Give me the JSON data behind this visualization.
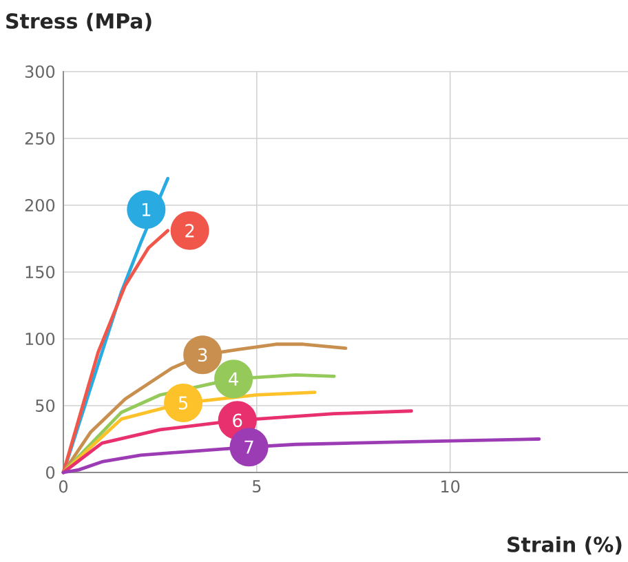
{
  "chart_data": {
    "type": "line",
    "xlabel": "Strain (%)",
    "ylabel": "Stress (MPa)",
    "xlim": [
      0,
      14.6
    ],
    "xticks": [
      0,
      5,
      10
    ],
    "ylim": [
      0,
      300
    ],
    "yticks": [
      0,
      50,
      100,
      150,
      200,
      250,
      300
    ],
    "grid": true,
    "marker": "none",
    "line_style": "solid",
    "series": [
      {
        "name": "1",
        "color": "#29abe2",
        "x": [
          0,
          1.5,
          2.0,
          2.7
        ],
        "values": [
          0,
          135,
          172,
          220
        ]
      },
      {
        "name": "2",
        "color": "#f0574a",
        "x": [
          0,
          0.9,
          1.6,
          2.2,
          2.7
        ],
        "values": [
          0,
          90,
          140,
          168,
          181
        ]
      },
      {
        "name": "3",
        "color": "#c98f4e",
        "x": [
          0,
          0.7,
          1.6,
          2.8,
          3.6,
          4.5,
          5.5,
          6.2,
          7.3
        ],
        "values": [
          0,
          30,
          55,
          78,
          88,
          92,
          96,
          96,
          93
        ]
      },
      {
        "name": "4",
        "color": "#95c95a",
        "x": [
          0,
          1.5,
          2.5,
          4.4,
          6,
          7
        ],
        "values": [
          0,
          45,
          58,
          70,
          73,
          72
        ]
      },
      {
        "name": "5",
        "color": "#fdc22a",
        "x": [
          0,
          1.5,
          3.1,
          5,
          6.5
        ],
        "values": [
          0,
          40,
          52,
          58,
          60
        ]
      },
      {
        "name": "6",
        "color": "#e8306f",
        "x": [
          0,
          1,
          2.5,
          4.5,
          7,
          9
        ],
        "values": [
          0,
          22,
          32,
          39,
          44,
          46
        ]
      },
      {
        "name": "7",
        "color": "#9c3cb5",
        "x": [
          0,
          0.4,
          1,
          2,
          4.8,
          6,
          9,
          12.3
        ],
        "values": [
          0,
          2,
          8,
          13,
          19,
          21,
          23,
          25
        ]
      }
    ]
  }
}
